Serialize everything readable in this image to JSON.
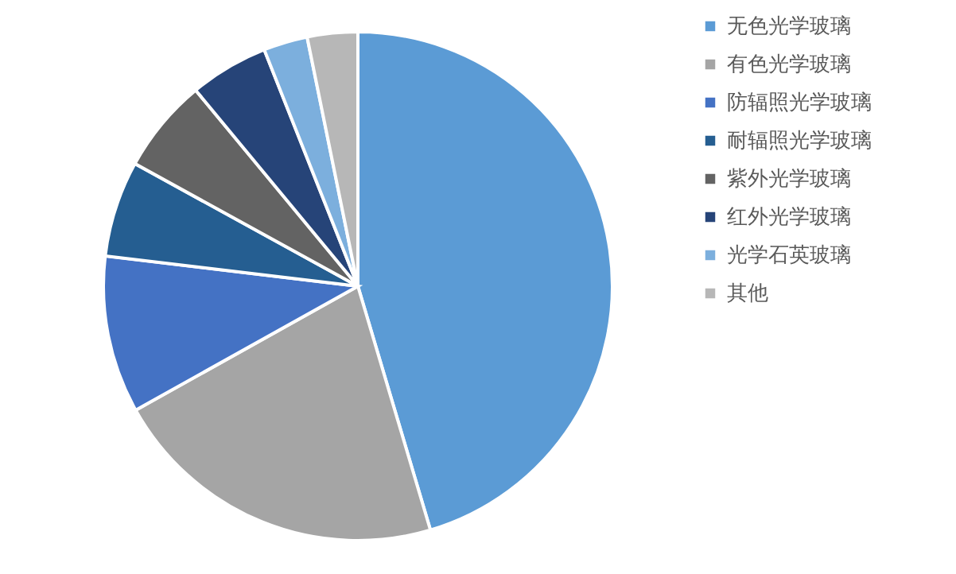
{
  "chart_data": {
    "type": "pie",
    "categories": [
      "无色光学玻璃",
      "有色光学玻璃",
      "防辐照光学玻璃",
      "耐辐照光学玻璃",
      "紫外光学玻璃",
      "红外光学玻璃",
      "光学石英玻璃",
      "其他"
    ],
    "values": [
      45.4,
      21.5,
      10.0,
      6.1,
      6.0,
      5.0,
      2.8,
      3.2
    ],
    "colors": [
      "#5b9bd5",
      "#a5a5a5",
      "#4472c4",
      "#255e91",
      "#636363",
      "#264478",
      "#7cafdd",
      "#b7b7b7"
    ],
    "legend": "right"
  }
}
